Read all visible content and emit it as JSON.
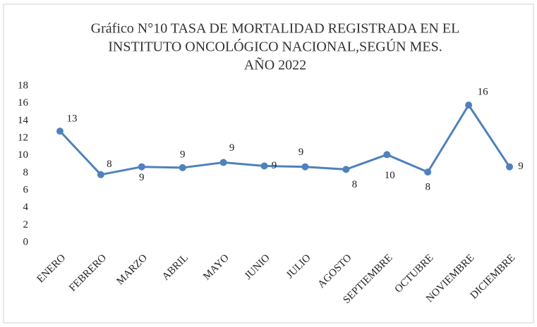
{
  "chart_data": {
    "type": "line",
    "title": [
      "Gráfico N°10 TASA DE MORTALIDAD REGISTRADA EN EL",
      "INSTITUTO ONCOLÓGICO NACIONAL,SEGÚN MES.",
      "AÑO 2022"
    ],
    "categories": [
      "ENERO",
      "FEBRERO",
      "MARZO",
      "ABRIL",
      "MAYO",
      "JUNIO",
      "JULIO",
      "AGOSTO",
      "SEPTIEMBRE",
      "OCTUBRE",
      "NOVIEMBRE",
      "DICIEMBRE"
    ],
    "values": [
      12.8,
      7.8,
      8.7,
      8.6,
      9.2,
      8.8,
      8.7,
      8.4,
      10.1,
      8.1,
      15.8,
      8.7
    ],
    "value_labels": [
      "13",
      "8",
      "9",
      "9",
      "9",
      "9",
      "9",
      "8",
      "10",
      "8",
      "16",
      "9"
    ],
    "color": "#4f81bd",
    "ylim": [
      0,
      18
    ],
    "yticks": [
      0,
      2,
      4,
      6,
      8,
      10,
      12,
      14,
      16,
      18
    ],
    "grid": false
  }
}
